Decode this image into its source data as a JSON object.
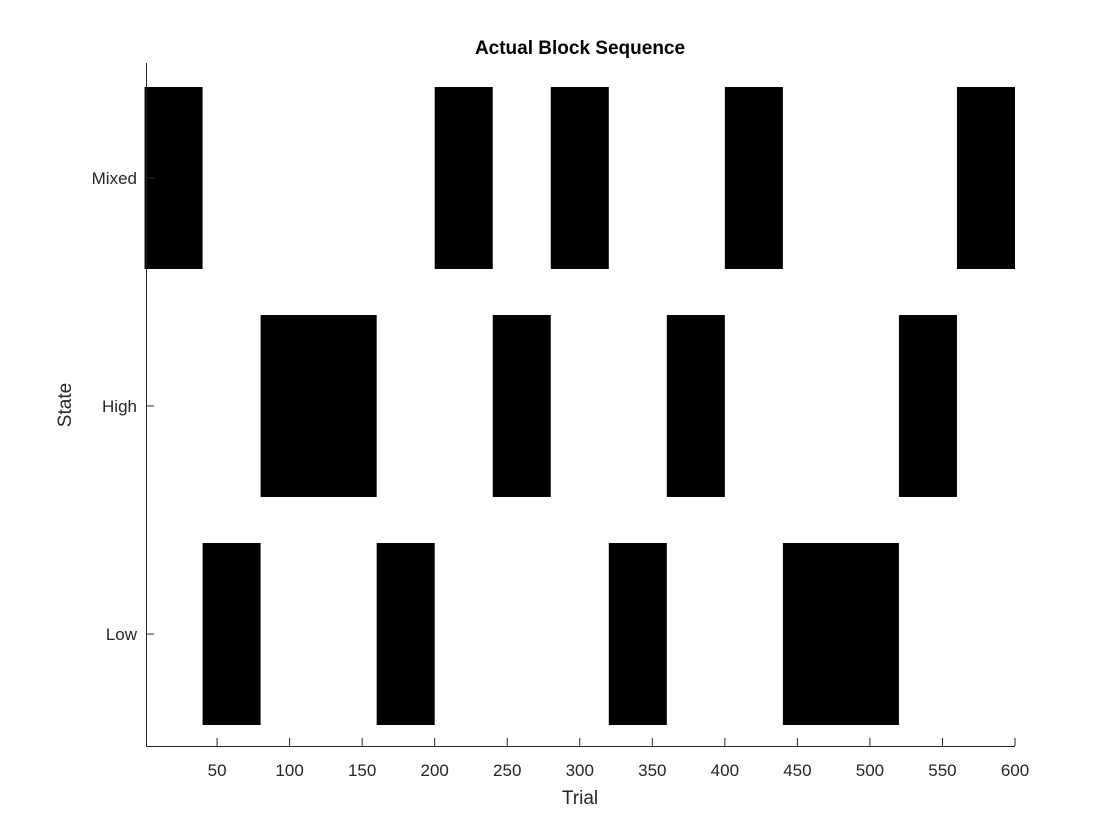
{
  "chart_data": {
    "type": "heatmap",
    "title": "Actual Block Sequence",
    "xlabel": "Trial",
    "ylabel": "State",
    "xlim": [
      1,
      600
    ],
    "x_ticks": [
      50,
      100,
      150,
      200,
      250,
      300,
      350,
      400,
      450,
      500,
      550,
      600
    ],
    "states": [
      "Low",
      "High",
      "Mixed"
    ],
    "block_color": "#000000",
    "blocks": [
      {
        "state": "Mixed",
        "start": 0,
        "end": 40
      },
      {
        "state": "Low",
        "start": 40,
        "end": 80
      },
      {
        "state": "High",
        "start": 80,
        "end": 160
      },
      {
        "state": "Low",
        "start": 160,
        "end": 200
      },
      {
        "state": "Mixed",
        "start": 200,
        "end": 240
      },
      {
        "state": "High",
        "start": 240,
        "end": 280
      },
      {
        "state": "Mixed",
        "start": 280,
        "end": 320
      },
      {
        "state": "Low",
        "start": 320,
        "end": 360
      },
      {
        "state": "High",
        "start": 360,
        "end": 400
      },
      {
        "state": "Mixed",
        "start": 400,
        "end": 440
      },
      {
        "state": "Low",
        "start": 440,
        "end": 520
      },
      {
        "state": "High",
        "start": 520,
        "end": 560
      },
      {
        "state": "Mixed",
        "start": 560,
        "end": 600
      }
    ],
    "grid": false,
    "legend": "none"
  }
}
